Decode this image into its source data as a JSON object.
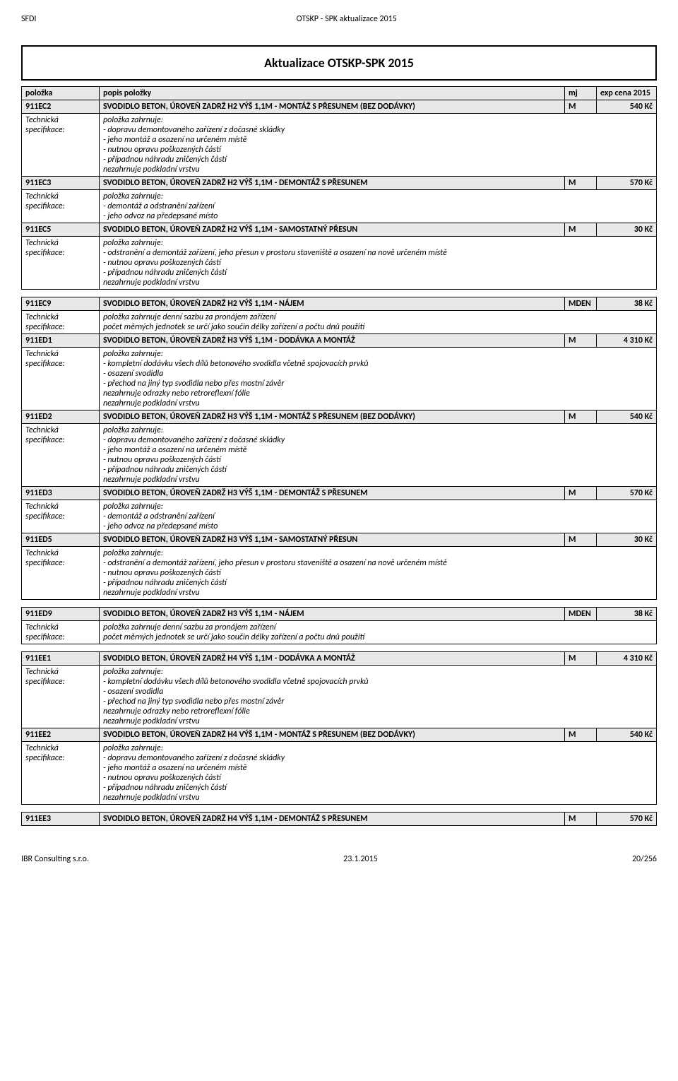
{
  "header": {
    "left": "SFDI",
    "center": "OTSKP - SPK aktualizace 2015"
  },
  "title": "Aktualizace OTSKP-SPK 2015",
  "columns": {
    "code": "položka",
    "desc": "popis položky",
    "mj": "mj",
    "price": "exp cena 2015"
  },
  "specLabel": "Technická specifikace:",
  "blocks": [
    {
      "rows": [
        {
          "code": "911EC2",
          "desc": "SVODIDLO BETON, ÚROVEŇ ZADRŽ H2 VÝŠ 1,1M - MONTÁŽ S PŘESUNEM (BEZ DODÁVKY)",
          "mj": "M",
          "price": "540 Kč",
          "spec": [
            "položka zahrnuje:",
            "- dopravu demontovaného zařízení z dočasné skládky",
            "- jeho montáž a osazení na určeném místě",
            "- nutnou opravu poškozených částí",
            "- případnou náhradu zničených částí",
            "nezahrnuje podkladní vrstvu"
          ]
        },
        {
          "code": "911EC3",
          "desc": "SVODIDLO BETON, ÚROVEŇ ZADRŽ H2 VÝŠ 1,1M - DEMONTÁŽ S PŘESUNEM",
          "mj": "M",
          "price": "570 Kč",
          "spec": [
            "položka zahrnuje:",
            "- demontáž a odstranění zařízení",
            "- jeho odvoz na předepsané místo"
          ]
        },
        {
          "code": "911EC5",
          "desc": "SVODIDLO BETON, ÚROVEŇ ZADRŽ H2 VÝŠ 1,1M - SAMOSTATNÝ PŘESUN",
          "mj": "M",
          "price": "30 Kč",
          "spec": [
            "položka zahrnuje:",
            "- odstranění a demontáž zařízení, jeho přesun v prostoru staveniště a osazení na nově určeném místě",
            "- nutnou opravu poškozených částí",
            "- případnou náhradu zničených částí",
            "nezahrnuje podkladní vrstvu"
          ]
        }
      ]
    },
    {
      "rows": [
        {
          "code": "911EC9",
          "desc": "SVODIDLO BETON, ÚROVEŇ ZADRŽ H2 VÝŠ 1,1M - NÁJEM",
          "mj": "MDEN",
          "price": "38 Kč",
          "spec": [
            "položka zahrnuje denní sazbu za pronájem zařízení",
            "počet měrných jednotek se určí jako součin délky zařízení a počtu dnů použití"
          ]
        },
        {
          "code": "911ED1",
          "desc": "SVODIDLO BETON, ÚROVEŇ ZADRŽ H3 VÝŠ 1,1M - DODÁVKA A MONTÁŽ",
          "mj": "M",
          "price": "4 310 Kč",
          "spec": [
            "položka zahrnuje:",
            "- kompletní dodávku všech dílů betonového svodidla včetně spojovacích prvků",
            "- osazení svodidla",
            "- přechod na jiný typ svodidla nebo přes mostní závěr",
            "nezahrnuje odrazky nebo retroreflexní fólie",
            "nezahrnuje podkladní vrstvu"
          ]
        },
        {
          "code": "911ED2",
          "desc": "SVODIDLO BETON, ÚROVEŇ ZADRŽ H3 VÝŠ 1,1M - MONTÁŽ S PŘESUNEM (BEZ DODÁVKY)",
          "mj": "M",
          "price": "540 Kč",
          "spec": [
            "položka zahrnuje:",
            "- dopravu demontovaného zařízení z dočasné skládky",
            "- jeho montáž a osazení na určeném místě",
            "- nutnou opravu poškozených částí",
            "- případnou náhradu zničených částí",
            "nezahrnuje podkladní vrstvu"
          ]
        },
        {
          "code": "911ED3",
          "desc": "SVODIDLO BETON, ÚROVEŇ ZADRŽ H3 VÝŠ 1,1M - DEMONTÁŽ S PŘESUNEM",
          "mj": "M",
          "price": "570 Kč",
          "spec": [
            "položka zahrnuje:",
            "- demontáž a odstranění zařízení",
            "- jeho odvoz na předepsané místo"
          ]
        },
        {
          "code": "911ED5",
          "desc": "SVODIDLO BETON, ÚROVEŇ ZADRŽ H3 VÝŠ 1,1M - SAMOSTATNÝ PŘESUN",
          "mj": "M",
          "price": "30 Kč",
          "spec": [
            "položka zahrnuje:",
            "- odstranění a demontáž zařízení, jeho přesun v prostoru staveniště a osazení na nově určeném místě",
            "- nutnou opravu poškozených částí",
            "- případnou náhradu zničených částí",
            "nezahrnuje podkladní vrstvu"
          ]
        }
      ]
    },
    {
      "rows": [
        {
          "code": "911ED9",
          "desc": "SVODIDLO BETON, ÚROVEŇ ZADRŽ H3 VÝŠ 1,1M - NÁJEM",
          "mj": "MDEN",
          "price": "38 Kč",
          "spec": [
            "položka zahrnuje denní sazbu za pronájem zařízení",
            "počet měrných jednotek se určí jako součin délky zařízení a počtu dnů použití"
          ]
        }
      ]
    },
    {
      "rows": [
        {
          "code": "911EE1",
          "desc": "SVODIDLO BETON, ÚROVEŇ ZADRŽ H4 VÝŠ 1,1M - DODÁVKA A MONTÁŽ",
          "mj": "M",
          "price": "4 310 Kč",
          "spec": [
            "položka zahrnuje:",
            "- kompletní dodávku všech dílů betonového svodidla včetně spojovacích prvků",
            "- osazení svodidla",
            "- přechod na jiný typ svodidla nebo přes mostní závěr",
            "nezahrnuje odrazky nebo retroreflexní fólie",
            "nezahrnuje podkladní vrstvu"
          ]
        },
        {
          "code": "911EE2",
          "desc": "SVODIDLO BETON, ÚROVEŇ ZADRŽ H4 VÝŠ 1,1M - MONTÁŽ S PŘESUNEM (BEZ DODÁVKY)",
          "mj": "M",
          "price": "540 Kč",
          "spec": [
            "položka zahrnuje:",
            "- dopravu demontovaného zařízení z dočasné skládky",
            "- jeho montáž a osazení na určeném místě",
            "- nutnou opravu poškozených částí",
            "- případnou náhradu zničených částí",
            "nezahrnuje podkladní vrstvu"
          ]
        }
      ]
    },
    {
      "rows": [
        {
          "code": "911EE3",
          "desc": "SVODIDLO BETON, ÚROVEŇ ZADRŽ H4 VÝŠ 1,1M - DEMONTÁŽ S PŘESUNEM",
          "mj": "M",
          "price": "570 Kč"
        }
      ]
    }
  ],
  "footer": {
    "left": "IBR Consulting s.r.o.",
    "center": "23.1.2015",
    "right": "20/256"
  }
}
